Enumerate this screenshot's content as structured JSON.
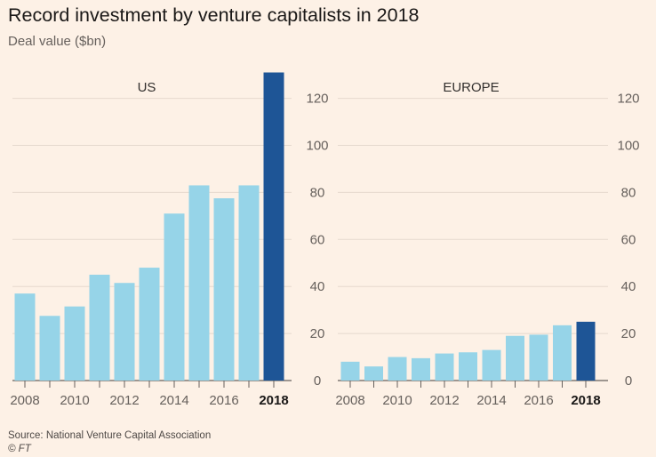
{
  "title": "Record investment by venture capitalists in 2018",
  "subtitle": "Deal value ($bn)",
  "source": "Source: National Venture Capital Association",
  "credit": "© FT",
  "colors": {
    "background": "#fdf1e6",
    "bar": "#96d4e8",
    "highlight": "#1e5596",
    "grid": "#e6d9ce",
    "axis": "#66605c"
  },
  "chart_data": [
    {
      "type": "bar",
      "title": "US",
      "categories": [
        "2008",
        "2009",
        "2010",
        "2011",
        "2012",
        "2013",
        "2014",
        "2015",
        "2016",
        "2017",
        "2018"
      ],
      "values": [
        37,
        27.5,
        31.5,
        45,
        41.5,
        48,
        71,
        83,
        77.5,
        83,
        131
      ],
      "highlight": "2018",
      "x_tick_labels": [
        "2008",
        "2010",
        "2012",
        "2014",
        "2016",
        "2018"
      ],
      "y_ticks": [
        0,
        20,
        40,
        60,
        80,
        100,
        120
      ],
      "ylim": [
        0,
        131
      ],
      "y_axis_side": "right",
      "grid": true
    },
    {
      "type": "bar",
      "title": "EUROPE",
      "categories": [
        "2008",
        "2009",
        "2010",
        "2011",
        "2012",
        "2013",
        "2014",
        "2015",
        "2016",
        "2017",
        "2018"
      ],
      "values": [
        8,
        6,
        10,
        9.5,
        11.5,
        12,
        13,
        19,
        19.5,
        23.5,
        25
      ],
      "highlight": "2018",
      "x_tick_labels": [
        "2008",
        "2010",
        "2012",
        "2014",
        "2016",
        "2018"
      ],
      "y_ticks": [
        0,
        20,
        40,
        60,
        80,
        100,
        120
      ],
      "ylim": [
        0,
        131
      ],
      "y_axis_side": "right",
      "grid": true
    }
  ]
}
